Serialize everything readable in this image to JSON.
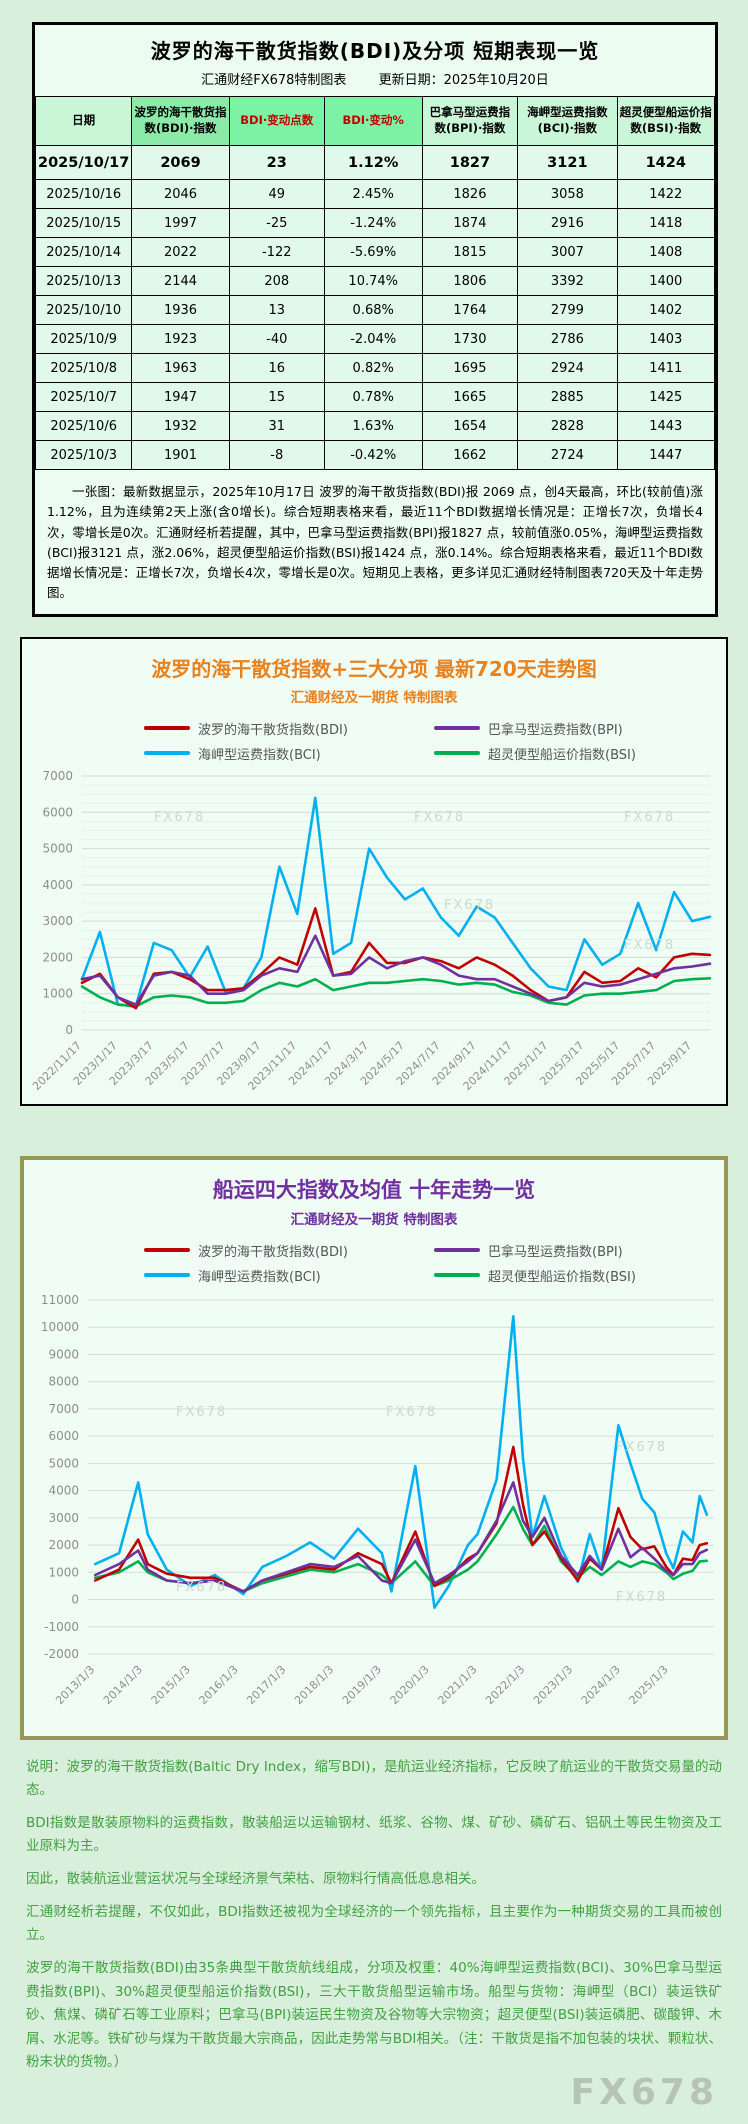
{
  "page": {
    "watermark": "FX678"
  },
  "top_panel": {
    "title": "波罗的海干散货指数(BDI)及分项  短期表现一览",
    "source_label": "汇通财经FX678特制图表",
    "update_label": "更新日期：2025年10月20日",
    "table": {
      "columns": [
        "日期",
        "波罗的海干散货指数(BDI)·指数",
        "BDI·变动点数",
        "BDI·变动%",
        "巴拿马型运费指数(BPI)·指数",
        "海岬型运费指数(BCI)·指数",
        "超灵便型船运价指数(BSI)·指数"
      ],
      "rows": [
        [
          "2025/10/17",
          "2069",
          "23",
          "1.12%",
          "1827",
          "3121",
          "1424"
        ],
        [
          "2025/10/16",
          "2046",
          "49",
          "2.45%",
          "1826",
          "3058",
          "1422"
        ],
        [
          "2025/10/15",
          "1997",
          "-25",
          "-1.24%",
          "1874",
          "2916",
          "1418"
        ],
        [
          "2025/10/14",
          "2022",
          "-122",
          "-5.69%",
          "1815",
          "3007",
          "1408"
        ],
        [
          "2025/10/13",
          "2144",
          "208",
          "10.74%",
          "1806",
          "3392",
          "1400"
        ],
        [
          "2025/10/10",
          "1936",
          "13",
          "0.68%",
          "1764",
          "2799",
          "1402"
        ],
        [
          "2025/10/9",
          "1923",
          "-40",
          "-2.04%",
          "1730",
          "2786",
          "1403"
        ],
        [
          "2025/10/8",
          "1963",
          "16",
          "0.82%",
          "1695",
          "2924",
          "1411"
        ],
        [
          "2025/10/7",
          "1947",
          "15",
          "0.78%",
          "1665",
          "2885",
          "1425"
        ],
        [
          "2025/10/6",
          "1932",
          "31",
          "1.63%",
          "1654",
          "2828",
          "1443"
        ],
        [
          "2025/10/3",
          "1901",
          "-8",
          "-0.42%",
          "1662",
          "2724",
          "1447"
        ]
      ]
    },
    "summary": "一张图：最新数据显示，2025年10月17日 波罗的海干散货指数(BDI)报 2069 点，创4天最高，环比(较前值)涨1.12%，且为连续第2天上涨(含0增长)。综合短期表格来看，最近11个BDI数据增长情况是：正增长7次，负增长4次，零增长是0次。汇通财经析若提醒，其中，巴拿马型运费指数(BPI)报1827 点，较前值涨0.05%，海岬型运费指数(BCI)报3121 点，涨2.06%，超灵便型船运价指数(BSI)报1424 点，涨0.14%。综合短期表格来看，最近11个BDI数据增长情况是：正增长7次，负增长4次，零增长是0次。短期见上表格，更多详见汇通财经特制图表720天及十年走势图。"
  },
  "chart_data": [
    {
      "type": "line",
      "title": "波罗的海干散货指数+三大分项  最新720天走势图",
      "subtitle": "汇通财经及一期货  特制图表",
      "ylim": [
        0,
        7000
      ],
      "ystep": 1000,
      "yminor": 250,
      "grid": true,
      "legend_position": "top",
      "categories": [
        "2022/11",
        "2022/12",
        "2023/1",
        "2023/2",
        "2023/3",
        "2023/4",
        "2023/5",
        "2023/6",
        "2023/7",
        "2023/8",
        "2023/9",
        "2023/10",
        "2023/11",
        "2023/12",
        "2024/1",
        "2024/2",
        "2024/3",
        "2024/4",
        "2024/5",
        "2024/6",
        "2024/7",
        "2024/8",
        "2024/9",
        "2024/10",
        "2024/11",
        "2024/12",
        "2025/1",
        "2025/2",
        "2025/3",
        "2025/4",
        "2025/5",
        "2025/6",
        "2025/7",
        "2025/8",
        "2025/9",
        "2025/10"
      ],
      "xtick_indices": [
        0,
        2,
        4,
        6,
        8,
        10,
        12,
        14,
        16,
        18,
        20,
        22,
        24,
        26,
        28,
        30,
        32,
        34
      ],
      "xtick_labels": [
        "2022/11/17",
        "2023/1/17",
        "2023/3/17",
        "2023/5/17",
        "2023/7/17",
        "2023/9/17",
        "2023/11/17",
        "2024/1/17",
        "2024/3/17",
        "2024/5/17",
        "2024/7/17",
        "2024/9/17",
        "2024/11/17",
        "2025/1/17",
        "2025/3/17",
        "2025/5/17",
        "2025/7/17",
        "2025/9/17"
      ],
      "draw_order": [
        2,
        3,
        0,
        1
      ],
      "series": [
        {
          "name": "波罗的海干散货指数(BDI)",
          "color": "#c00000",
          "values": [
            1300,
            1550,
            900,
            600,
            1550,
            1600,
            1400,
            1100,
            1100,
            1150,
            1550,
            2000,
            1800,
            3350,
            1500,
            1600,
            2400,
            1850,
            1850,
            2000,
            1900,
            1700,
            2000,
            1800,
            1500,
            1100,
            800,
            900,
            1600,
            1300,
            1350,
            1700,
            1450,
            2000,
            2100,
            2069
          ]
        },
        {
          "name": "巴拿马型运费指数(BPI)",
          "color": "#7030a0",
          "values": [
            1400,
            1500,
            900,
            700,
            1500,
            1600,
            1500,
            1000,
            1000,
            1100,
            1500,
            1700,
            1600,
            2600,
            1500,
            1550,
            2000,
            1700,
            1900,
            2000,
            1800,
            1500,
            1400,
            1400,
            1200,
            1000,
            800,
            900,
            1300,
            1200,
            1250,
            1400,
            1550,
            1700,
            1750,
            1827
          ]
        },
        {
          "name": "海岬型运费指数(BCI)",
          "color": "#00b0f0",
          "values": [
            1400,
            2700,
            700,
            650,
            2400,
            2200,
            1450,
            2300,
            1050,
            1150,
            2000,
            4500,
            3200,
            6400,
            2100,
            2400,
            5000,
            4200,
            3600,
            3900,
            3100,
            2600,
            3400,
            3100,
            2400,
            1700,
            1200,
            1100,
            2500,
            1800,
            2100,
            3500,
            2200,
            3800,
            3000,
            3121
          ]
        },
        {
          "name": "超灵便型船运价指数(BSI)",
          "color": "#00b050",
          "values": [
            1200,
            900,
            700,
            650,
            900,
            950,
            900,
            750,
            750,
            800,
            1100,
            1300,
            1200,
            1400,
            1100,
            1200,
            1300,
            1300,
            1350,
            1400,
            1350,
            1250,
            1300,
            1250,
            1050,
            950,
            750,
            700,
            950,
            1000,
            1000,
            1050,
            1100,
            1350,
            1400,
            1424
          ]
        }
      ]
    },
    {
      "type": "line",
      "title": "船运四大指数及均值 十年走势一览",
      "subtitle": "汇通财经及一期货 特制图表",
      "ylim": [
        -2000,
        11000
      ],
      "ystep": 1000,
      "grid": true,
      "legend_position": "top",
      "xlim": [
        2012.85,
        2025.95
      ],
      "x": [
        2013.0,
        2013.5,
        2013.9,
        2014.1,
        2014.5,
        2015.0,
        2015.5,
        2016.1,
        2016.5,
        2017.0,
        2017.5,
        2018.0,
        2018.5,
        2019.0,
        2019.2,
        2019.7,
        2020.1,
        2020.4,
        2020.8,
        2021.0,
        2021.4,
        2021.75,
        2021.95,
        2022.15,
        2022.4,
        2022.75,
        2023.1,
        2023.35,
        2023.6,
        2023.95,
        2024.2,
        2024.45,
        2024.7,
        2024.95,
        2025.1,
        2025.3,
        2025.5,
        2025.65,
        2025.8
      ],
      "xtick_values": [
        2013,
        2014,
        2015,
        2016,
        2017,
        2018,
        2019,
        2020,
        2021,
        2022,
        2023,
        2024,
        2025
      ],
      "xtick_labels": [
        "2013/1/3",
        "2014/1/3",
        "2015/1/3",
        "2016/1/3",
        "2017/1/3",
        "2018/1/3",
        "2019/1/3",
        "2020/1/3",
        "2021/1/3",
        "2022/1/3",
        "2023/1/3",
        "2024/1/3",
        "2025/1/3"
      ],
      "draw_order": [
        2,
        3,
        0,
        1
      ],
      "series": [
        {
          "name": "波罗的海干散货指数(BDI)",
          "color": "#c00000",
          "values": [
            700,
            1100,
            2200,
            1300,
            950,
            800,
            800,
            300,
            700,
            950,
            1200,
            1100,
            1700,
            1300,
            600,
            2500,
            500,
            800,
            1500,
            1700,
            2800,
            5600,
            3500,
            2000,
            2500,
            1500,
            700,
            1500,
            1100,
            3350,
            2300,
            1850,
            1950,
            1200,
            900,
            1500,
            1450,
            2000,
            2069
          ]
        },
        {
          "name": "巴拿马型运费指数(BPI)",
          "color": "#7030a0",
          "values": [
            900,
            1300,
            1800,
            1100,
            700,
            600,
            700,
            300,
            700,
            1000,
            1300,
            1200,
            1600,
            700,
            600,
            2200,
            600,
            900,
            1400,
            1700,
            2900,
            4300,
            2900,
            2300,
            3000,
            1600,
            900,
            1600,
            1100,
            2600,
            1550,
            1900,
            1500,
            1050,
            900,
            1300,
            1300,
            1700,
            1827
          ]
        },
        {
          "name": "海岬型运费指数(BCI)",
          "color": "#00b0f0",
          "values": [
            1300,
            1700,
            4300,
            2400,
            1100,
            500,
            900,
            200,
            1200,
            1600,
            2100,
            1500,
            2600,
            1700,
            300,
            4900,
            -300,
            500,
            2000,
            2400,
            4400,
            10400,
            5200,
            2300,
            3800,
            1900,
            650,
            2400,
            1100,
            6400,
            5000,
            3700,
            3200,
            1700,
            1150,
            2500,
            2100,
            3800,
            3121
          ]
        },
        {
          "name": "超灵便型船运价指数(BSI)",
          "color": "#00b050",
          "values": [
            800,
            1000,
            1400,
            1000,
            700,
            600,
            700,
            300,
            600,
            850,
            1100,
            1000,
            1300,
            900,
            600,
            1400,
            500,
            700,
            1100,
            1400,
            2400,
            3400,
            2600,
            2000,
            2700,
            1400,
            800,
            1200,
            900,
            1400,
            1200,
            1400,
            1300,
            1000,
            750,
            950,
            1050,
            1400,
            1424
          ]
        }
      ]
    }
  ],
  "notes": {
    "lines": [
      "说明：波罗的海干散货指数(Baltic Dry Index，缩写BDI)，是航运业经济指标，它反映了航运业的干散货交易量的动态。",
      "BDI指数是散装原物料的运费指数，散装船运以运输钢材、纸浆、谷物、煤、矿砂、磷矿石、铝矾土等民生物资及工业原料为主。",
      "因此，散装航运业营运状况与全球经济景气荣枯、原物料行情高低息息相关。",
      "汇通财经析若提醒，不仅如此，BDI指数还被视为全球经济的一个领先指标，且主要作为一种期货交易的工具而被创立。",
      "波罗的海干散货指数(BDI)由35条典型干散货航线组成，分项及权重：40%海岬型运费指数(BCI)、30%巴拿马型运费指数(BPI)、30%超灵便型船运价指数(BSI)，三大干散货船型运输市场。船型与货物：海岬型（BCI）装运铁矿砂、焦煤、磷矿石等工业原料；巴拿马(BPI)装运民生物资及谷物等大宗物资；超灵便型(BSI)装运磷肥、碳酸钾、木屑、水泥等。铁矿砂与煤为干散货最大宗商品，因此走势常与BDI相关。（注：干散货是指不加包装的块状、颗粒状、粉末状的货物。）"
    ]
  }
}
